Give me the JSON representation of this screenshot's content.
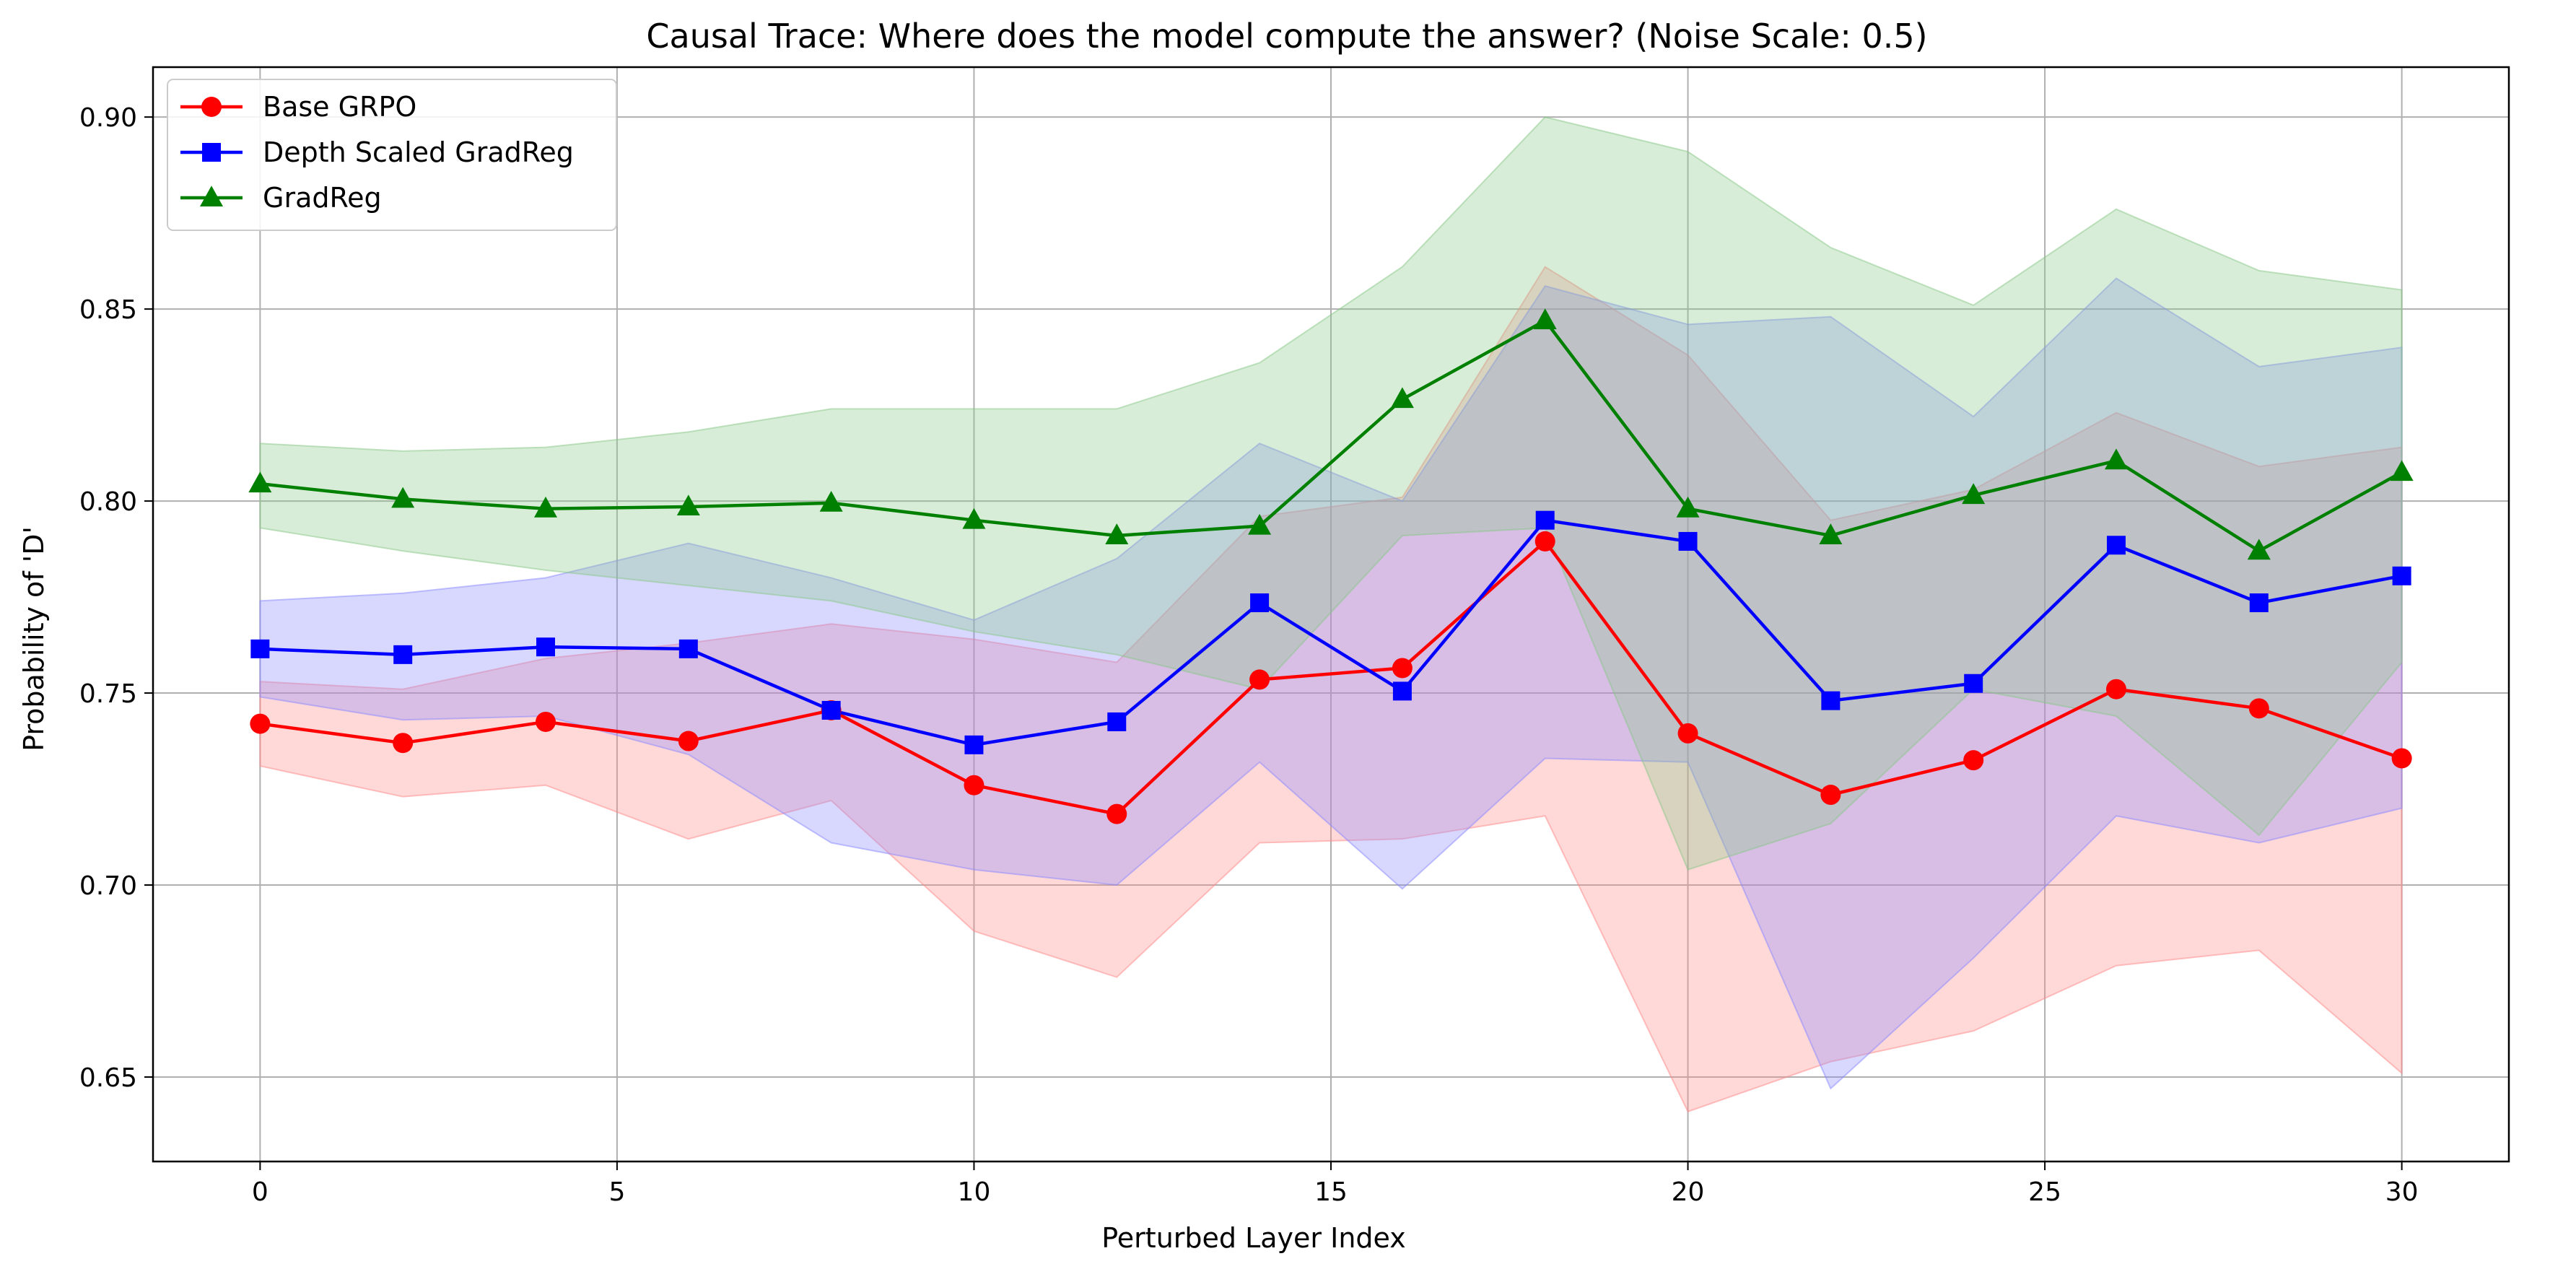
{
  "chart_data": {
    "type": "line",
    "title": "Causal Trace: Where does the model compute the answer? (Noise Scale: 0.5)",
    "xlabel": "Perturbed Layer Index",
    "ylabel": "Probability of 'D'",
    "xlim": [
      -1.5,
      31.5
    ],
    "ylim": [
      0.628,
      0.913
    ],
    "xticks": [
      0,
      5,
      10,
      15,
      20,
      25,
      30
    ],
    "yticks": [
      0.65,
      0.7,
      0.75,
      0.8,
      0.85,
      0.9
    ],
    "xtick_labels": [
      "0",
      "5",
      "10",
      "15",
      "20",
      "25",
      "30"
    ],
    "ytick_labels": [
      "0.65",
      "0.70",
      "0.75",
      "0.80",
      "0.85",
      "0.90"
    ],
    "grid": true,
    "legend_position": "top-left",
    "x": [
      0,
      2,
      4,
      6,
      8,
      10,
      12,
      14,
      16,
      18,
      20,
      22,
      24,
      26,
      28,
      30
    ],
    "series": [
      {
        "name": "Base GRPO",
        "color": "#ff0000",
        "band_color": "#ff8888",
        "marker": "circle",
        "values": [
          0.742,
          0.737,
          0.7425,
          0.7375,
          0.7455,
          0.726,
          0.7185,
          0.7535,
          0.7565,
          0.7895,
          0.7395,
          0.7235,
          0.7325,
          0.751,
          0.746,
          0.733
        ],
        "lower": [
          0.731,
          0.723,
          0.726,
          0.712,
          0.722,
          0.688,
          0.676,
          0.711,
          0.712,
          0.718,
          0.641,
          0.654,
          0.662,
          0.679,
          0.683,
          0.651
        ],
        "upper": [
          0.753,
          0.751,
          0.759,
          0.763,
          0.768,
          0.764,
          0.758,
          0.796,
          0.801,
          0.861,
          0.838,
          0.795,
          0.803,
          0.823,
          0.809,
          0.814
        ]
      },
      {
        "name": "Depth Scaled GradReg",
        "color": "#0000ff",
        "band_color": "#8888ff",
        "marker": "square",
        "values": [
          0.7615,
          0.76,
          0.762,
          0.7615,
          0.7455,
          0.7365,
          0.7425,
          0.7735,
          0.7505,
          0.795,
          0.7895,
          0.748,
          0.7525,
          0.7885,
          0.7735,
          0.7805
        ],
        "lower": [
          0.749,
          0.743,
          0.744,
          0.734,
          0.711,
          0.704,
          0.7,
          0.732,
          0.699,
          0.733,
          0.732,
          0.647,
          0.681,
          0.718,
          0.711,
          0.72
        ],
        "upper": [
          0.774,
          0.776,
          0.78,
          0.789,
          0.78,
          0.769,
          0.785,
          0.815,
          0.8,
          0.856,
          0.846,
          0.848,
          0.822,
          0.858,
          0.835,
          0.84
        ]
      },
      {
        "name": "GradReg",
        "color": "#008000",
        "band_color": "#88c888",
        "marker": "triangle",
        "values": [
          0.8045,
          0.8005,
          0.798,
          0.7985,
          0.7995,
          0.795,
          0.791,
          0.7935,
          0.8265,
          0.847,
          0.798,
          0.791,
          0.8015,
          0.8105,
          0.787,
          0.8075
        ],
        "lower": [
          0.793,
          0.787,
          0.782,
          0.778,
          0.774,
          0.766,
          0.76,
          0.751,
          0.791,
          0.793,
          0.704,
          0.716,
          0.751,
          0.744,
          0.713,
          0.758
        ],
        "upper": [
          0.815,
          0.813,
          0.814,
          0.818,
          0.824,
          0.824,
          0.824,
          0.836,
          0.861,
          0.9,
          0.891,
          0.866,
          0.851,
          0.876,
          0.86,
          0.855
        ]
      }
    ]
  }
}
